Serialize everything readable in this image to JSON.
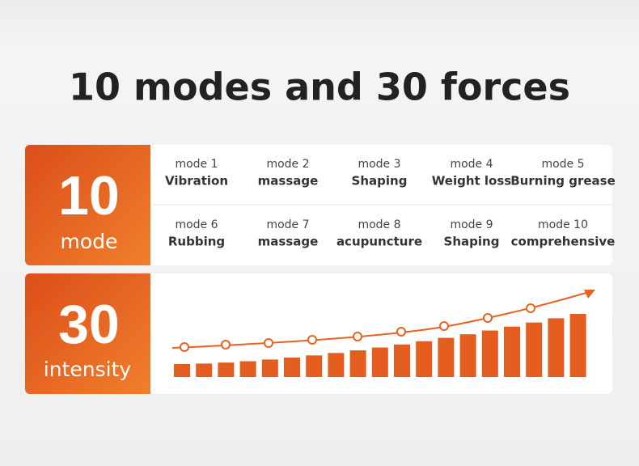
{
  "header": {
    "title": "10 modes and 30 forces"
  },
  "modes": {
    "count": "10",
    "unit": "mode",
    "items": [
      {
        "label": "mode 1",
        "name": "Vibration"
      },
      {
        "label": "mode 2",
        "name": "massage"
      },
      {
        "label": "mode 3",
        "name": "Shaping"
      },
      {
        "label": "mode 4",
        "name": "Weight loss"
      },
      {
        "label": "mode 5",
        "name": "Burning grease"
      },
      {
        "label": "mode 6",
        "name": "Rubbing"
      },
      {
        "label": "mode 7",
        "name": "massage"
      },
      {
        "label": "mode 8",
        "name": "acupuncture"
      },
      {
        "label": "mode 9",
        "name": "Shaping"
      },
      {
        "label": "mode 10",
        "name": "comprehensive"
      }
    ]
  },
  "intensity": {
    "count": "30",
    "unit": "intensity"
  }
}
